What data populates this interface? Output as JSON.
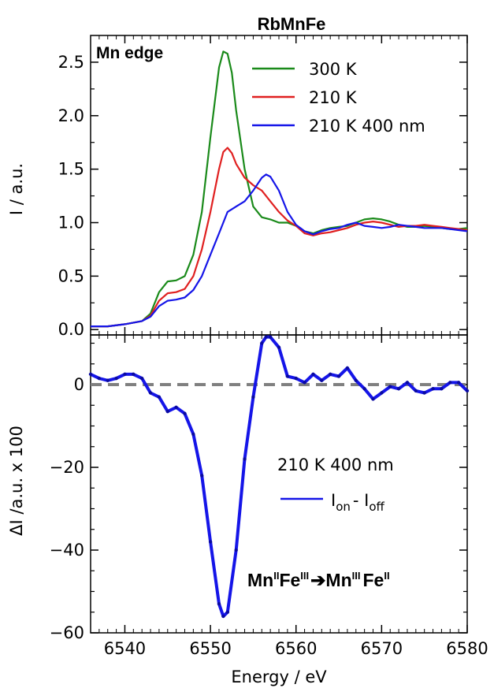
{
  "chart_data": [
    {
      "panel": "top",
      "type": "line",
      "title": "RbMnFe",
      "annotation": "Mn edge",
      "xlabel": "",
      "ylabel": "I / a.u.",
      "xlim": [
        6536,
        6580
      ],
      "ylim": [
        -0.05,
        2.75
      ],
      "yticks": [
        0.0,
        0.5,
        1.0,
        1.5,
        2.0,
        2.5
      ],
      "ytick_labels": [
        "0.0",
        "0.5",
        "1.0",
        "1.5",
        "2.0",
        "2.5"
      ],
      "legend_position": "top-right",
      "series": [
        {
          "name": "300 K",
          "color": "#1a8a1a",
          "x": [
            6536,
            6538,
            6540,
            6542,
            6543,
            6544,
            6545,
            6546,
            6547,
            6548,
            6549,
            6550,
            6551,
            6551.5,
            6552,
            6552.5,
            6553,
            6554,
            6555,
            6556,
            6557,
            6558,
            6559,
            6560,
            6561,
            6562,
            6563,
            6564,
            6565,
            6566,
            6567,
            6568,
            6569,
            6570,
            6571,
            6572,
            6573,
            6574,
            6575,
            6576,
            6577,
            6578,
            6579,
            6580
          ],
          "y": [
            0.03,
            0.03,
            0.05,
            0.08,
            0.15,
            0.35,
            0.45,
            0.46,
            0.5,
            0.7,
            1.1,
            1.8,
            2.45,
            2.6,
            2.58,
            2.4,
            2.05,
            1.5,
            1.15,
            1.05,
            1.03,
            1.0,
            1.0,
            0.97,
            0.92,
            0.9,
            0.93,
            0.95,
            0.96,
            0.97,
            1.0,
            1.03,
            1.04,
            1.03,
            1.01,
            0.98,
            0.96,
            0.96,
            0.97,
            0.96,
            0.95,
            0.94,
            0.94,
            0.95
          ]
        },
        {
          "name": "210 K",
          "color": "#e02020",
          "x": [
            6536,
            6538,
            6540,
            6542,
            6543,
            6544,
            6545,
            6546,
            6547,
            6548,
            6549,
            6550,
            6551,
            6551.5,
            6552,
            6552.5,
            6553,
            6554,
            6555,
            6556,
            6557,
            6558,
            6559,
            6560,
            6561,
            6562,
            6563,
            6564,
            6565,
            6566,
            6567,
            6568,
            6569,
            6570,
            6571,
            6572,
            6573,
            6574,
            6575,
            6576,
            6577,
            6578,
            6579,
            6580
          ],
          "y": [
            0.03,
            0.03,
            0.05,
            0.08,
            0.13,
            0.27,
            0.34,
            0.35,
            0.38,
            0.5,
            0.75,
            1.1,
            1.5,
            1.66,
            1.7,
            1.65,
            1.55,
            1.42,
            1.35,
            1.3,
            1.2,
            1.1,
            1.02,
            0.97,
            0.9,
            0.88,
            0.9,
            0.91,
            0.93,
            0.95,
            0.98,
            1.0,
            1.01,
            1.0,
            0.98,
            0.96,
            0.97,
            0.97,
            0.98,
            0.97,
            0.96,
            0.95,
            0.94,
            0.93
          ]
        },
        {
          "name": "210 K 400 nm",
          "color": "#1515e8",
          "x": [
            6536,
            6538,
            6540,
            6542,
            6543,
            6544,
            6545,
            6546,
            6547,
            6548,
            6549,
            6550,
            6551,
            6552,
            6553,
            6554,
            6555,
            6556,
            6556.5,
            6557,
            6558,
            6559,
            6560,
            6561,
            6562,
            6563,
            6564,
            6565,
            6566,
            6567,
            6568,
            6569,
            6570,
            6571,
            6572,
            6573,
            6574,
            6575,
            6576,
            6577,
            6578,
            6579,
            6580
          ],
          "y": [
            0.03,
            0.03,
            0.05,
            0.08,
            0.12,
            0.22,
            0.27,
            0.28,
            0.3,
            0.37,
            0.5,
            0.7,
            0.9,
            1.1,
            1.15,
            1.2,
            1.3,
            1.42,
            1.45,
            1.43,
            1.3,
            1.1,
            0.98,
            0.92,
            0.89,
            0.92,
            0.94,
            0.95,
            0.98,
            1.0,
            0.97,
            0.96,
            0.95,
            0.96,
            0.98,
            0.97,
            0.96,
            0.95,
            0.95,
            0.95,
            0.94,
            0.93,
            0.92
          ]
        }
      ]
    },
    {
      "panel": "bottom",
      "type": "line",
      "xlabel": "Energy / eV",
      "ylabel": "ΔI /a.u. x 100",
      "xlim": [
        6536,
        6580
      ],
      "ylim": [
        -60,
        12
      ],
      "xticks": [
        6540,
        6550,
        6560,
        6570,
        6580
      ],
      "xtick_labels": [
        "6540",
        "6550",
        "6560",
        "6570",
        "6580"
      ],
      "yticks": [
        0,
        -20,
        -40,
        -60
      ],
      "ytick_labels": [
        "0",
        "−20",
        "−40",
        "−60"
      ],
      "reference_line": {
        "y": 0,
        "color": "#808080",
        "style": "dashed"
      },
      "legend_title": "210 K 400 nm",
      "legend_position": "middle-right",
      "series": [
        {
          "name": "I_on - I_off",
          "color": "#1515e8",
          "x": [
            6536,
            6537,
            6538,
            6539,
            6540,
            6541,
            6542,
            6543,
            6544,
            6545,
            6546,
            6547,
            6548,
            6549,
            6550,
            6551,
            6551.5,
            6552,
            6553,
            6554,
            6555,
            6556,
            6556.5,
            6557,
            6558,
            6559,
            6560,
            6561,
            6562,
            6563,
            6564,
            6565,
            6566,
            6567,
            6568,
            6569,
            6570,
            6571,
            6572,
            6573,
            6574,
            6575,
            6576,
            6577,
            6578,
            6579,
            6580
          ],
          "y": [
            2.5,
            1.5,
            1.0,
            1.5,
            2.5,
            2.5,
            1.5,
            -2,
            -3,
            -6.5,
            -5.5,
            -7,
            -12,
            -22,
            -38,
            -53,
            -56,
            -55,
            -40,
            -18,
            -3,
            10,
            11.5,
            11.5,
            9,
            2,
            1.5,
            0.5,
            2.5,
            1,
            2.5,
            2,
            4,
            1,
            -1,
            -3.5,
            -2,
            -0.5,
            -1,
            0.5,
            -1.5,
            -2,
            -1,
            -1,
            0.5,
            0.5,
            -1.5
          ]
        }
      ]
    }
  ],
  "legend_formula": {
    "base1": "I",
    "sub1": "on",
    "sep": "- ",
    "base2": "I",
    "sub2": "off"
  },
  "transition_annotation": {
    "mn1": "Mn",
    "mn1_ox": "II",
    "fe1": "Fe",
    "fe1_ox": "III",
    "arrow": "➔",
    "mn2": "Mn",
    "mn2_ox": "III",
    "fe2": "Fe",
    "fe2_ox": "II"
  }
}
